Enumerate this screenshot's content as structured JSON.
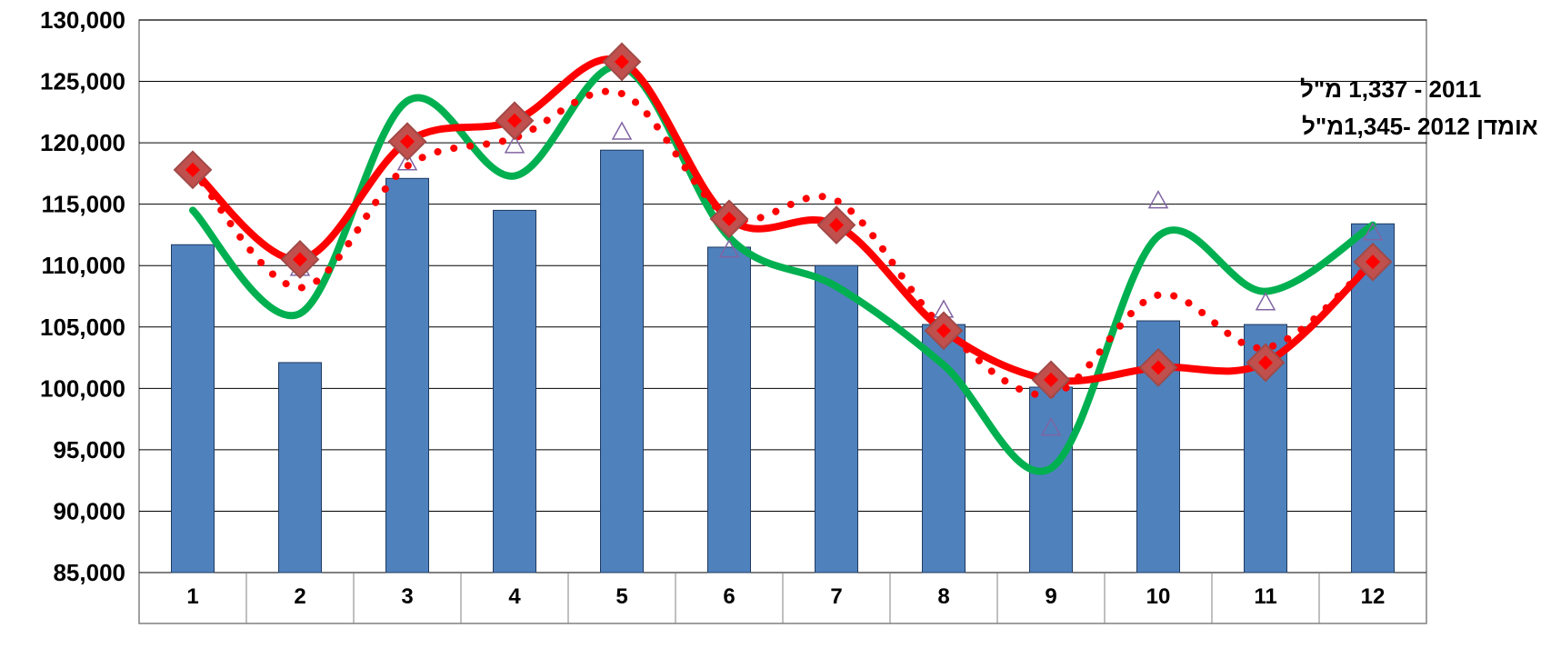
{
  "chart_data": {
    "type": "bar",
    "categories": [
      "1",
      "2",
      "3",
      "4",
      "5",
      "6",
      "7",
      "8",
      "9",
      "10",
      "11",
      "12"
    ],
    "ylim": [
      85000,
      130000
    ],
    "ytick_labels": [
      "85,000",
      "90,000",
      "95,000",
      "100,000",
      "105,000",
      "110,000",
      "115,000",
      "120,000",
      "125,000",
      "130,000"
    ],
    "ytick_values": [
      85000,
      90000,
      95000,
      100000,
      105000,
      110000,
      115000,
      120000,
      125000,
      130000
    ],
    "grid": true,
    "annotations": [
      "2011 -  1,337 מ\"ל",
      "אומדן 2012   -1,345מ\"ל"
    ],
    "series": [
      {
        "kind": "bar",
        "color": "#4F81BD",
        "values": [
          111700,
          102100,
          117100,
          114500,
          119400,
          111500,
          110000,
          105200,
          100100,
          105500,
          105200,
          113400
        ]
      },
      {
        "kind": "smooth-line",
        "color": "#00B050",
        "values": [
          114500,
          106100,
          123400,
          117300,
          126200,
          112300,
          108300,
          101900,
          93500,
          112400,
          107900,
          113300
        ]
      },
      {
        "kind": "smooth-line-markers",
        "color": "#FF0000",
        "marker": "diamond",
        "values": [
          117800,
          110500,
          120100,
          121800,
          126600,
          113800,
          113300,
          104700,
          100700,
          101700,
          102100,
          110300
        ]
      },
      {
        "kind": "dotted-line",
        "color": "#FF0000",
        "values": [
          117800,
          108200,
          118100,
          120400,
          124000,
          114000,
          115300,
          104900,
          99500,
          107600,
          103300,
          110300
        ]
      },
      {
        "kind": "markers",
        "color": "#8064A2",
        "marker": "triangle",
        "values": [
          118000,
          109800,
          118400,
          119800,
          120900,
          111300,
          113300,
          106400,
          96800,
          115300,
          107000,
          112700
        ]
      }
    ]
  }
}
